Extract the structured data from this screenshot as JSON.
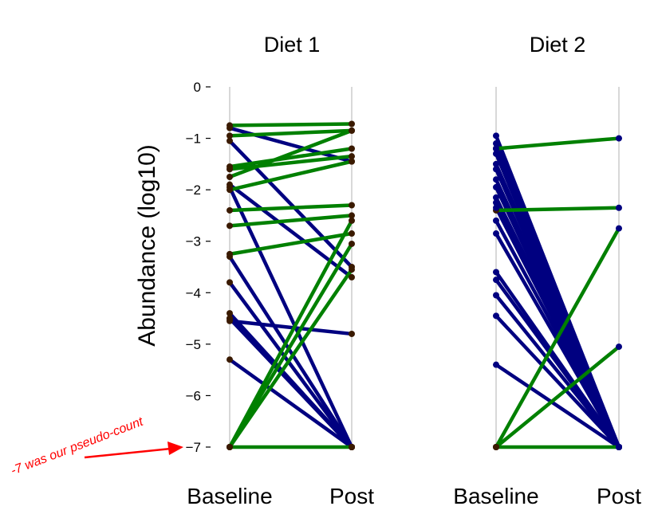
{
  "chart_data": {
    "type": "line",
    "ylabel": "Abundance (log10)",
    "ylim": [
      -7,
      0
    ],
    "yticks": [
      0,
      -1,
      -2,
      -3,
      -4,
      -5,
      -6,
      -7
    ],
    "ytick_labels": [
      "0",
      "−1",
      "−2",
      "−3",
      "−4",
      "−5",
      "−6",
      "−7"
    ],
    "x_categories": [
      "Baseline",
      "Post"
    ],
    "colors": {
      "increase": "#008000",
      "decrease": "#000080",
      "point": "#3a1a00",
      "guide": "#cccccc",
      "annotation": "#ff0000"
    },
    "panels": [
      {
        "title": "Diet 1",
        "pairs": [
          [
            -0.75,
            -0.72
          ],
          [
            -0.8,
            -1.45
          ],
          [
            -0.95,
            -0.85
          ],
          [
            -1.05,
            -3.5
          ],
          [
            -1.55,
            -1.2
          ],
          [
            -1.6,
            -1.35
          ],
          [
            -1.75,
            -0.85
          ],
          [
            -1.9,
            -3.7
          ],
          [
            -2.0,
            -1.45
          ],
          [
            -2.4,
            -2.3
          ],
          [
            -2.7,
            -2.5
          ],
          [
            -3.25,
            -2.85
          ],
          [
            -1.95,
            -7
          ],
          [
            -3.3,
            -7
          ],
          [
            -3.8,
            -7
          ],
          [
            -4.4,
            -7
          ],
          [
            -4.5,
            -7
          ],
          [
            -4.55,
            -4.8
          ],
          [
            -4.5,
            -7
          ],
          [
            -5.3,
            -7
          ],
          [
            -7,
            -2.6
          ],
          [
            -7,
            -3.05
          ],
          [
            -7,
            -3.55
          ],
          [
            -7,
            -7
          ]
        ]
      },
      {
        "title": "Diet 2",
        "pairs": [
          [
            -1.2,
            -1.0
          ],
          [
            -2.4,
            -2.35
          ],
          [
            -7,
            -2.75
          ],
          [
            -7,
            -5.05
          ],
          [
            -0.95,
            -7
          ],
          [
            -1.1,
            -7
          ],
          [
            -1.2,
            -7
          ],
          [
            -1.3,
            -7
          ],
          [
            -1.5,
            -7
          ],
          [
            -1.6,
            -7
          ],
          [
            -1.8,
            -7
          ],
          [
            -1.95,
            -7
          ],
          [
            -2.15,
            -7
          ],
          [
            -2.25,
            -7
          ],
          [
            -2.35,
            -7
          ],
          [
            -2.6,
            -7
          ],
          [
            -2.85,
            -7
          ],
          [
            -3.6,
            -7
          ],
          [
            -3.75,
            -7
          ],
          [
            -4.05,
            -7
          ],
          [
            -4.45,
            -7
          ],
          [
            -5.4,
            -7
          ],
          [
            -7,
            -7
          ]
        ]
      }
    ],
    "annotation": {
      "text": "-7 was our pseudo-count",
      "points_to_y": -7
    }
  }
}
